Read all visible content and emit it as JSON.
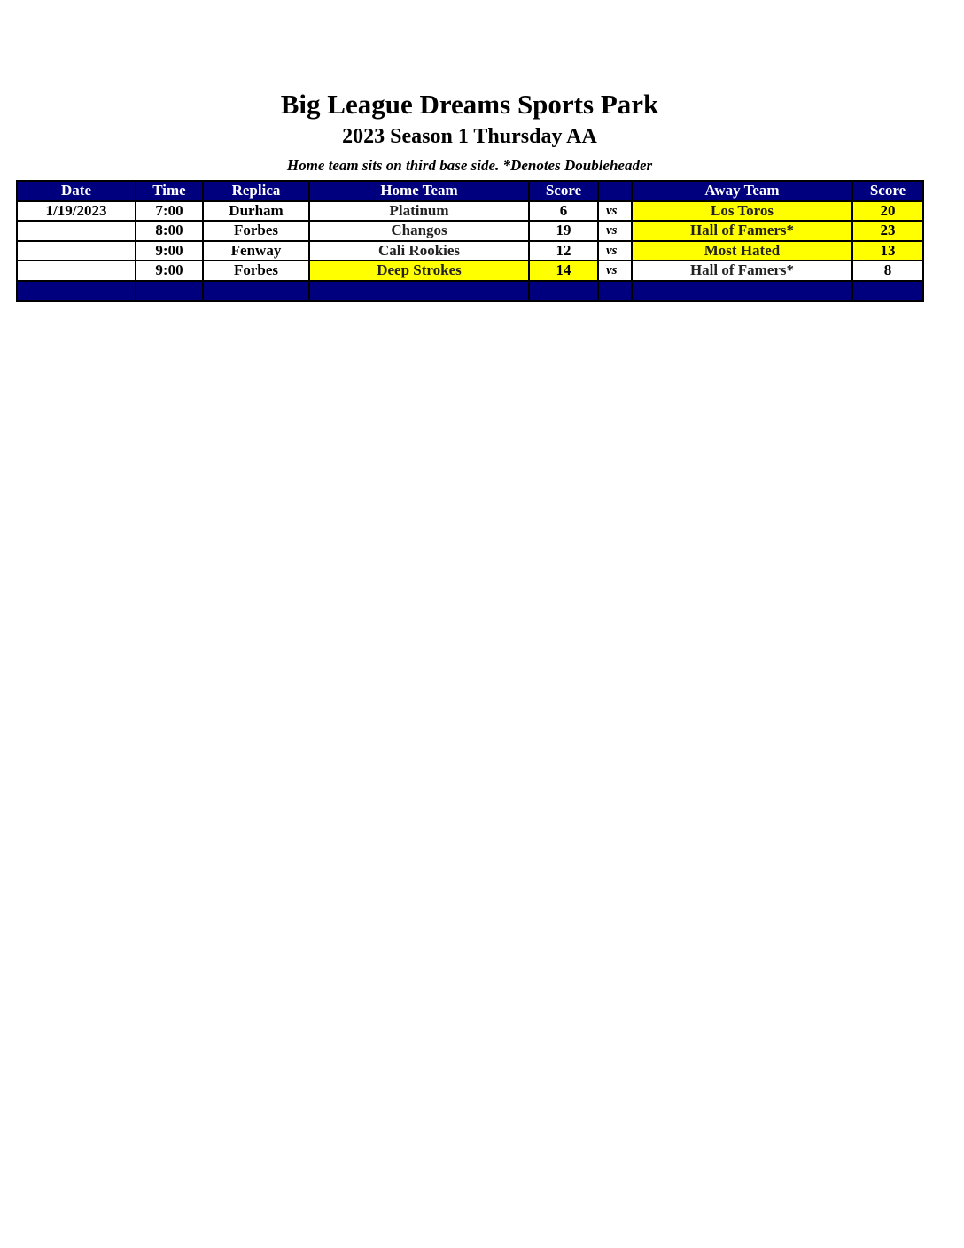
{
  "header": {
    "title": "Big League Dreams Sports Park",
    "subtitle": "2023 Season 1 Thursday AA",
    "note": "Home team sits on third base side.  *Denotes Doubleheader"
  },
  "table": {
    "columns": [
      "Date",
      "Time",
      "Replica",
      "Home Team",
      "Score",
      "",
      "Away Team",
      "Score"
    ],
    "highlight_color": "#ffff00",
    "header_color": "#00007f",
    "games": [
      {
        "date": "1/19/2023",
        "time": "7:00",
        "replica": "Durham",
        "home_team": "Platinum",
        "home_score": "6",
        "vs": "vs",
        "away_team": "Los Toros",
        "away_score": "20",
        "winner": "away"
      },
      {
        "date": "",
        "time": "8:00",
        "replica": "Forbes",
        "home_team": "Changos",
        "home_score": "19",
        "vs": "vs",
        "away_team": "Hall of Famers*",
        "away_score": "23",
        "winner": "away"
      },
      {
        "date": "",
        "time": "9:00",
        "replica": "Fenway",
        "home_team": "Cali Rookies",
        "home_score": "12",
        "vs": "vs",
        "away_team": "Most Hated",
        "away_score": "13",
        "winner": "away"
      },
      {
        "date": "",
        "time": "9:00",
        "replica": "Forbes",
        "home_team": "Deep Strokes",
        "home_score": "14",
        "vs": "vs",
        "away_team": "Hall of Famers*",
        "away_score": "8",
        "winner": "home"
      }
    ]
  }
}
